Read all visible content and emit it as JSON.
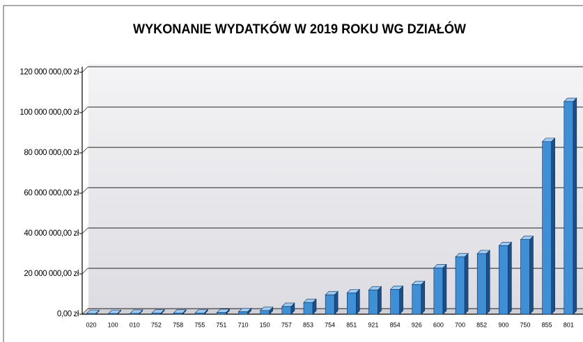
{
  "chart_data": {
    "type": "bar3d",
    "title": "WYKONANIE WYDATKÓW W 2019 ROKU WG DZIAŁÓW",
    "categories": [
      "020",
      "100",
      "010",
      "752",
      "758",
      "755",
      "751",
      "710",
      "150",
      "757",
      "853",
      "754",
      "851",
      "921",
      "854",
      "926",
      "600",
      "700",
      "852",
      "900",
      "750",
      "855",
      "801"
    ],
    "values": [
      300000,
      300000,
      400000,
      500000,
      500000,
      600000,
      800000,
      1200000,
      1800000,
      3800000,
      5800000,
      9600000,
      10600000,
      12000000,
      12300000,
      14700000,
      23000000,
      28400000,
      30000000,
      34000000,
      37000000,
      85600000,
      105500000
    ],
    "color": "#3f8fd6",
    "ylim": [
      0,
      120000000
    ],
    "yticks": [
      {
        "value": 0,
        "label": "0,00 zł"
      },
      {
        "value": 20000000,
        "label": "20 000 000,00 zł"
      },
      {
        "value": 40000000,
        "label": "40 000 000,00 zł"
      },
      {
        "value": 60000000,
        "label": "60 000 000,00 zł"
      },
      {
        "value": 80000000,
        "label": "80 000 000,00 zł"
      },
      {
        "value": 100000000,
        "label": "100 000 000,00 zł"
      },
      {
        "value": 120000000,
        "label": "120 000 000,00 zł"
      }
    ],
    "grid": true
  }
}
